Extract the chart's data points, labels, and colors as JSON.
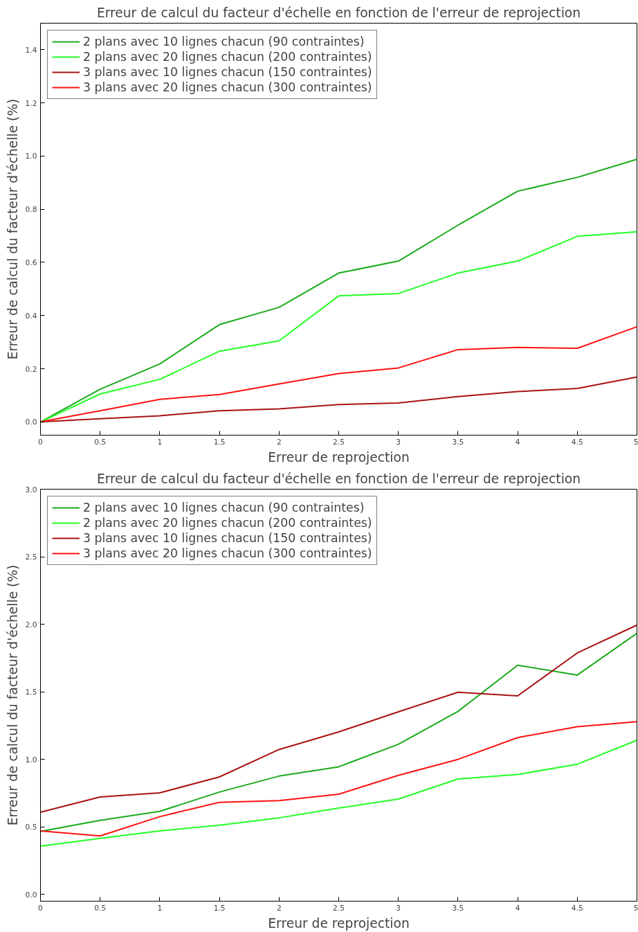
{
  "chart_data": [
    {
      "type": "line",
      "title": "Erreur de calcul du facteur d'échelle en fonction de l'erreur de reprojection",
      "xlabel": "Erreur de reprojection",
      "ylabel": "Erreur de calcul du facteur d'échelle (%)",
      "x": [
        0,
        0.5,
        1,
        1.5,
        2,
        2.5,
        3,
        3.5,
        4,
        4.5,
        5
      ],
      "series": [
        {
          "name": "2 plans avec 10 lignes chacun (90 contraintes)",
          "color": "#1aaa1a",
          "values": [
            0,
            0.123,
            0.218,
            0.366,
            0.431,
            0.56,
            0.605,
            0.74,
            0.868,
            0.92,
            0.988
          ]
        },
        {
          "name": "2 plans avec 20 lignes chacun (200 contraintes)",
          "color": "#22ff22",
          "values": [
            0,
            0.105,
            0.16,
            0.266,
            0.305,
            0.474,
            0.483,
            0.56,
            0.605,
            0.698,
            0.715
          ]
        },
        {
          "name": "3 plans avec 10 lignes chacun (150 contraintes)",
          "color": "#aa1111",
          "values": [
            0,
            0.012,
            0.023,
            0.042,
            0.049,
            0.065,
            0.071,
            0.095,
            0.114,
            0.126,
            0.169
          ]
        },
        {
          "name": "3 plans avec 20 lignes chacun (300 contraintes)",
          "color": "#ff1111",
          "values": [
            0,
            0.042,
            0.085,
            0.103,
            0.143,
            0.182,
            0.203,
            0.272,
            0.28,
            0.277,
            0.358
          ]
        }
      ],
      "xlim": [
        0,
        5
      ],
      "ylim": [
        -0.05,
        1.5
      ],
      "xticks": [
        0,
        0.5,
        1,
        1.5,
        2,
        2.5,
        3,
        3.5,
        4,
        4.5,
        5
      ],
      "yticks": [
        {
          "value": 0,
          "label": "0.0"
        },
        0.2,
        0.4,
        0.6,
        0.8,
        {
          "value": 1,
          "label": "1.0"
        },
        1.2,
        1.4
      ],
      "legend": "top left",
      "grid": false
    },
    {
      "type": "line",
      "title": "Erreur de calcul du facteur d'échelle en fonction de l'erreur de reprojection",
      "xlabel": "Erreur de reprojection",
      "ylabel": "Erreur de calcul du facteur d'échelle (%)",
      "x": [
        0,
        0.5,
        1,
        1.5,
        2,
        2.5,
        3,
        3.5,
        4,
        4.5,
        5
      ],
      "series": [
        {
          "name": "2 plans avec 10 lignes chacun (90 contraintes)",
          "color": "#1aaa1a",
          "values": [
            0.467,
            0.548,
            0.615,
            0.758,
            0.876,
            0.945,
            1.112,
            1.355,
            1.697,
            1.624,
            1.933
          ]
        },
        {
          "name": "2 plans avec 20 lignes chacun (200 contraintes)",
          "color": "#22ff22",
          "values": [
            0.358,
            0.415,
            0.47,
            0.512,
            0.567,
            0.639,
            0.706,
            0.855,
            0.888,
            0.964,
            1.142
          ]
        },
        {
          "name": "3 plans avec 10 lignes chacun (150 contraintes)",
          "color": "#aa1111",
          "values": [
            0.609,
            0.721,
            0.752,
            0.87,
            1.073,
            1.203,
            1.352,
            1.497,
            1.47,
            1.788,
            1.994
          ]
        },
        {
          "name": "3 plans avec 20 lignes chacun (300 contraintes)",
          "color": "#ff1111",
          "values": [
            0.47,
            0.433,
            0.576,
            0.682,
            0.694,
            0.742,
            0.882,
            1.0,
            1.161,
            1.242,
            1.279
          ]
        }
      ],
      "xlim": [
        0,
        5
      ],
      "ylim": [
        -0.05,
        3.0
      ],
      "xticks": [
        0,
        0.5,
        1,
        1.5,
        2,
        2.5,
        3,
        3.5,
        4,
        4.5,
        5
      ],
      "yticks": [
        {
          "value": 0,
          "label": "0.0"
        },
        0.5,
        {
          "value": 1,
          "label": "1.0"
        },
        1.5,
        {
          "value": 2,
          "label": "2.0"
        },
        2.5,
        {
          "value": 3,
          "label": "3.0"
        }
      ],
      "legend": "top left",
      "grid": false
    }
  ]
}
